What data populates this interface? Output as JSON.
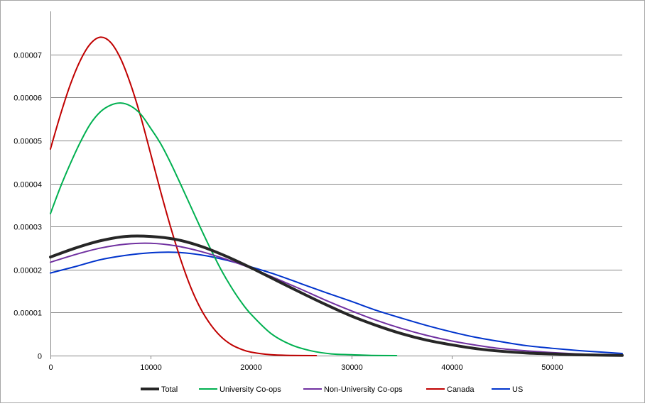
{
  "chart_data": {
    "type": "line",
    "title": "",
    "xlabel": "",
    "ylabel": "",
    "xlim": [
      0,
      57000
    ],
    "ylim": [
      0,
      8e-05
    ],
    "grid": true,
    "legend_position": "bottom",
    "x_ticks": [
      {
        "value": 0,
        "label": "0"
      },
      {
        "value": 10000,
        "label": "10000"
      },
      {
        "value": 20000,
        "label": "20000"
      },
      {
        "value": 30000,
        "label": "30000"
      },
      {
        "value": 40000,
        "label": "40000"
      },
      {
        "value": 50000,
        "label": "50000"
      }
    ],
    "y_ticks": [
      {
        "value": 0,
        "label": "0"
      },
      {
        "value": 1e-05,
        "label": "0.00001"
      },
      {
        "value": 2e-05,
        "label": "0.00002"
      },
      {
        "value": 3e-05,
        "label": "0.00003"
      },
      {
        "value": 4e-05,
        "label": "0.00004"
      },
      {
        "value": 5e-05,
        "label": "0.00005"
      },
      {
        "value": 6e-05,
        "label": "0.00006"
      },
      {
        "value": 7e-05,
        "label": "0.00007"
      }
    ],
    "series": [
      {
        "name": "Total",
        "color": "#262626",
        "width": 4,
        "points": [
          [
            0,
            2.29e-05
          ],
          [
            2500,
            2.5e-05
          ],
          [
            5000,
            2.67e-05
          ],
          [
            7500,
            2.77e-05
          ],
          [
            10000,
            2.77e-05
          ],
          [
            12500,
            2.7e-05
          ],
          [
            15000,
            2.54e-05
          ],
          [
            17500,
            2.31e-05
          ],
          [
            20000,
            2.04e-05
          ],
          [
            22500,
            1.75e-05
          ],
          [
            25000,
            1.46e-05
          ],
          [
            27500,
            1.18e-05
          ],
          [
            30000,
            9.2e-06
          ],
          [
            32500,
            7e-06
          ],
          [
            35000,
            5.1e-06
          ],
          [
            37500,
            3.6e-06
          ],
          [
            40000,
            2.5e-06
          ],
          [
            42500,
            1.6e-06
          ],
          [
            45000,
            1e-06
          ],
          [
            47500,
            6e-07
          ],
          [
            50000,
            4e-07
          ],
          [
            52500,
            2e-07
          ],
          [
            55000,
            1e-07
          ],
          [
            57000,
            5e-08
          ]
        ]
      },
      {
        "name": "University Co-ops",
        "color": "#00b050",
        "width": 2,
        "points": [
          [
            0,
            3.3e-05
          ],
          [
            1000,
            3.92e-05
          ],
          [
            2000,
            4.47e-05
          ],
          [
            3000,
            4.97e-05
          ],
          [
            4000,
            5.39e-05
          ],
          [
            5000,
            5.67e-05
          ],
          [
            6000,
            5.82e-05
          ],
          [
            7000,
            5.87e-05
          ],
          [
            8000,
            5.8e-05
          ],
          [
            9000,
            5.61e-05
          ],
          [
            10000,
            5.28e-05
          ],
          [
            11000,
            4.92e-05
          ],
          [
            12000,
            4.47e-05
          ],
          [
            13000,
            3.97e-05
          ],
          [
            14000,
            3.46e-05
          ],
          [
            15000,
            2.95e-05
          ],
          [
            16000,
            2.46e-05
          ],
          [
            17000,
            2e-05
          ],
          [
            18000,
            1.6e-05
          ],
          [
            19000,
            1.25e-05
          ],
          [
            20000,
            9.6e-06
          ],
          [
            22000,
            5.1e-06
          ],
          [
            24000,
            2.5e-06
          ],
          [
            26000,
            1.1e-06
          ],
          [
            28000,
            4e-07
          ],
          [
            30000,
            2e-07
          ],
          [
            32000,
            5e-08
          ],
          [
            34500,
            0.0
          ]
        ]
      },
      {
        "name": "Non-University Co-ops",
        "color": "#7030a0",
        "width": 2,
        "points": [
          [
            0,
            2.17e-05
          ],
          [
            2500,
            2.35e-05
          ],
          [
            5000,
            2.5e-05
          ],
          [
            7500,
            2.59e-05
          ],
          [
            10000,
            2.61e-05
          ],
          [
            12500,
            2.55e-05
          ],
          [
            15000,
            2.42e-05
          ],
          [
            17500,
            2.24e-05
          ],
          [
            20000,
            2.03e-05
          ],
          [
            22500,
            1.79e-05
          ],
          [
            25000,
            1.54e-05
          ],
          [
            27500,
            1.28e-05
          ],
          [
            30000,
            1.04e-05
          ],
          [
            32500,
            8.2e-06
          ],
          [
            35000,
            6.3e-06
          ],
          [
            37500,
            4.7e-06
          ],
          [
            40000,
            3.4e-06
          ],
          [
            42500,
            2.4e-06
          ],
          [
            45000,
            1.6e-06
          ],
          [
            47500,
            1.1e-06
          ],
          [
            50000,
            7e-07
          ],
          [
            52500,
            4e-07
          ],
          [
            55000,
            2e-07
          ],
          [
            57000,
            1e-07
          ]
        ]
      },
      {
        "name": "Canada",
        "color": "#c00000",
        "width": 2,
        "points": [
          [
            0,
            4.8e-05
          ],
          [
            1000,
            5.6e-05
          ],
          [
            2000,
            6.31e-05
          ],
          [
            3000,
            6.87e-05
          ],
          [
            4000,
            7.25e-05
          ],
          [
            5000,
            7.4e-05
          ],
          [
            6000,
            7.28e-05
          ],
          [
            7000,
            6.9e-05
          ],
          [
            8000,
            6.3e-05
          ],
          [
            9000,
            5.55e-05
          ],
          [
            10000,
            4.68e-05
          ],
          [
            11000,
            3.8e-05
          ],
          [
            12000,
            2.97e-05
          ],
          [
            13000,
            2.22e-05
          ],
          [
            14000,
            1.58e-05
          ],
          [
            15000,
            1.08e-05
          ],
          [
            16000,
            7.1e-06
          ],
          [
            17000,
            4.4e-06
          ],
          [
            18000,
            2.6e-06
          ],
          [
            19000,
            1.5e-06
          ],
          [
            20000,
            8e-07
          ],
          [
            22000,
            2e-07
          ],
          [
            24000,
            5e-08
          ],
          [
            26500,
            0.0
          ]
        ]
      },
      {
        "name": "US",
        "color": "#0033cc",
        "width": 2,
        "points": [
          [
            0,
            1.92e-05
          ],
          [
            2500,
            2.07e-05
          ],
          [
            5000,
            2.23e-05
          ],
          [
            7500,
            2.33e-05
          ],
          [
            10000,
            2.39e-05
          ],
          [
            12500,
            2.4e-05
          ],
          [
            15000,
            2.34e-05
          ],
          [
            17500,
            2.22e-05
          ],
          [
            20000,
            2.06e-05
          ],
          [
            22500,
            1.88e-05
          ],
          [
            25000,
            1.67e-05
          ],
          [
            27500,
            1.46e-05
          ],
          [
            30000,
            1.26e-05
          ],
          [
            32500,
            1.05e-05
          ],
          [
            35000,
            8.7e-06
          ],
          [
            37500,
            7e-06
          ],
          [
            40000,
            5.5e-06
          ],
          [
            42500,
            4.2e-06
          ],
          [
            45000,
            3.2e-06
          ],
          [
            47500,
            2.3e-06
          ],
          [
            50000,
            1.7e-06
          ],
          [
            52500,
            1.2e-06
          ],
          [
            55000,
            8e-07
          ],
          [
            57000,
            5e-07
          ]
        ]
      }
    ]
  }
}
